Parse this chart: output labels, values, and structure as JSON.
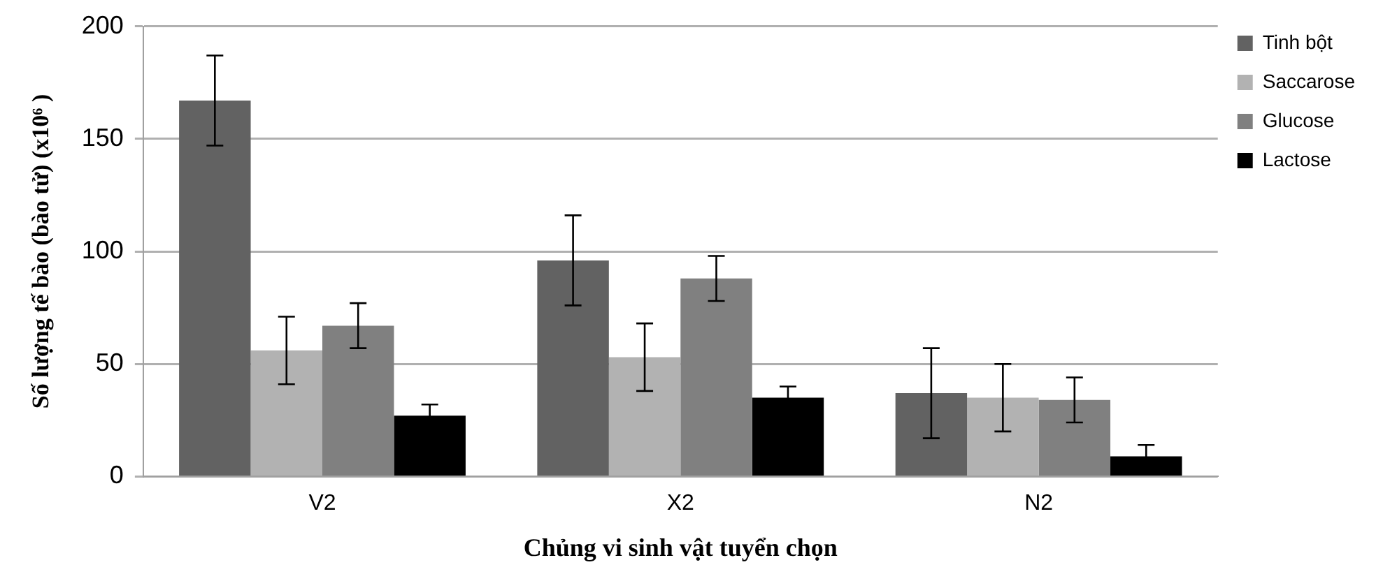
{
  "chart_data": {
    "type": "bar",
    "xlabel": "Chủng vi sinh vật tuyển chọn",
    "ylabel": "Số lượng tế bào (bào tử) (x10⁶ )",
    "categories": [
      "V2",
      "X2",
      "N2"
    ],
    "series": [
      {
        "name": "Tinh bột",
        "color": "#626262",
        "values": [
          167,
          96,
          37
        ],
        "errors": [
          20,
          20,
          20
        ]
      },
      {
        "name": "Saccarose",
        "color": "#b2b2b2",
        "values": [
          56,
          53,
          35
        ],
        "errors": [
          15,
          15,
          15
        ]
      },
      {
        "name": "Glucose",
        "color": "#808080",
        "values": [
          67,
          88,
          34
        ],
        "errors": [
          10,
          10,
          10
        ]
      },
      {
        "name": "Lactose",
        "color": "#000000",
        "values": [
          27,
          35,
          9
        ],
        "errors": [
          5,
          5,
          5
        ]
      }
    ],
    "ylim": [
      0,
      200
    ],
    "yticks": [
      0,
      50,
      100,
      150,
      200
    ],
    "grid": "y",
    "legend": "right"
  }
}
